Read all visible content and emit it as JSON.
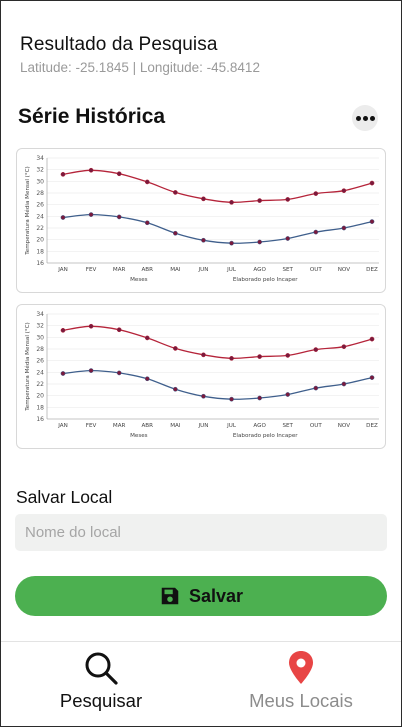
{
  "header": {
    "title": "Resultado da Pesquisa",
    "coordinates": "Latitude: -25.1845 | Longitude: -45.8412"
  },
  "section": {
    "title": "Série Histórica",
    "more_icon": "more-horizontal-icon"
  },
  "chart_data": [
    {
      "type": "line",
      "categories": [
        "JAN",
        "FEV",
        "MAR",
        "ABR",
        "MAI",
        "JUN",
        "JUL",
        "AGO",
        "SET",
        "OUT",
        "NOV",
        "DEZ"
      ],
      "series": [
        {
          "color": "#b5243a",
          "values": [
            31.2,
            31.9,
            31.3,
            29.9,
            28.1,
            27.0,
            26.4,
            26.7,
            26.9,
            27.9,
            28.4,
            29.7
          ]
        },
        {
          "color": "#3f5f8c",
          "values": [
            23.8,
            24.3,
            23.9,
            22.9,
            21.1,
            19.9,
            19.4,
            19.6,
            20.2,
            21.3,
            22.0,
            23.1
          ]
        }
      ],
      "ylabel": "Temperatura Média Mensal (°C)",
      "xlabel": "Meses",
      "annotation": "Elaborado pelo Incaper",
      "yticks": [
        16,
        18,
        20,
        22,
        24,
        26,
        28,
        30,
        32,
        34
      ],
      "ylim": [
        16,
        34
      ],
      "grid": true
    },
    {
      "type": "line",
      "categories": [
        "JAN",
        "FEV",
        "MAR",
        "ABR",
        "MAI",
        "JUN",
        "JUL",
        "AGO",
        "SET",
        "OUT",
        "NOV",
        "DEZ"
      ],
      "series": [
        {
          "color": "#b5243a",
          "values": [
            31.2,
            31.9,
            31.3,
            29.9,
            28.1,
            27.0,
            26.4,
            26.7,
            26.9,
            27.9,
            28.4,
            29.7
          ]
        },
        {
          "color": "#3f5f8c",
          "values": [
            23.8,
            24.3,
            23.9,
            22.9,
            21.1,
            19.9,
            19.4,
            19.6,
            20.2,
            21.3,
            22.0,
            23.1
          ]
        }
      ],
      "ylabel": "Temperatura Média Mensal (°C)",
      "xlabel": "Meses",
      "annotation": "Elaborado pelo Incaper",
      "yticks": [
        16,
        18,
        20,
        22,
        24,
        26,
        28,
        30,
        32,
        34
      ],
      "ylim": [
        16,
        34
      ],
      "grid": true
    }
  ],
  "save_form": {
    "label": "Salvar Local",
    "placeholder": "Nome do local",
    "value": "",
    "button_label": "Salvar",
    "button_icon": "floppy-disk-icon",
    "button_color": "#4cb050"
  },
  "tabbar": {
    "tabs": [
      {
        "label": "Pesquisar",
        "icon": "search-icon",
        "active": true
      },
      {
        "label": "Meus Locais",
        "icon": "map-pin-icon",
        "active": false,
        "icon_color": "#e84545"
      }
    ]
  }
}
